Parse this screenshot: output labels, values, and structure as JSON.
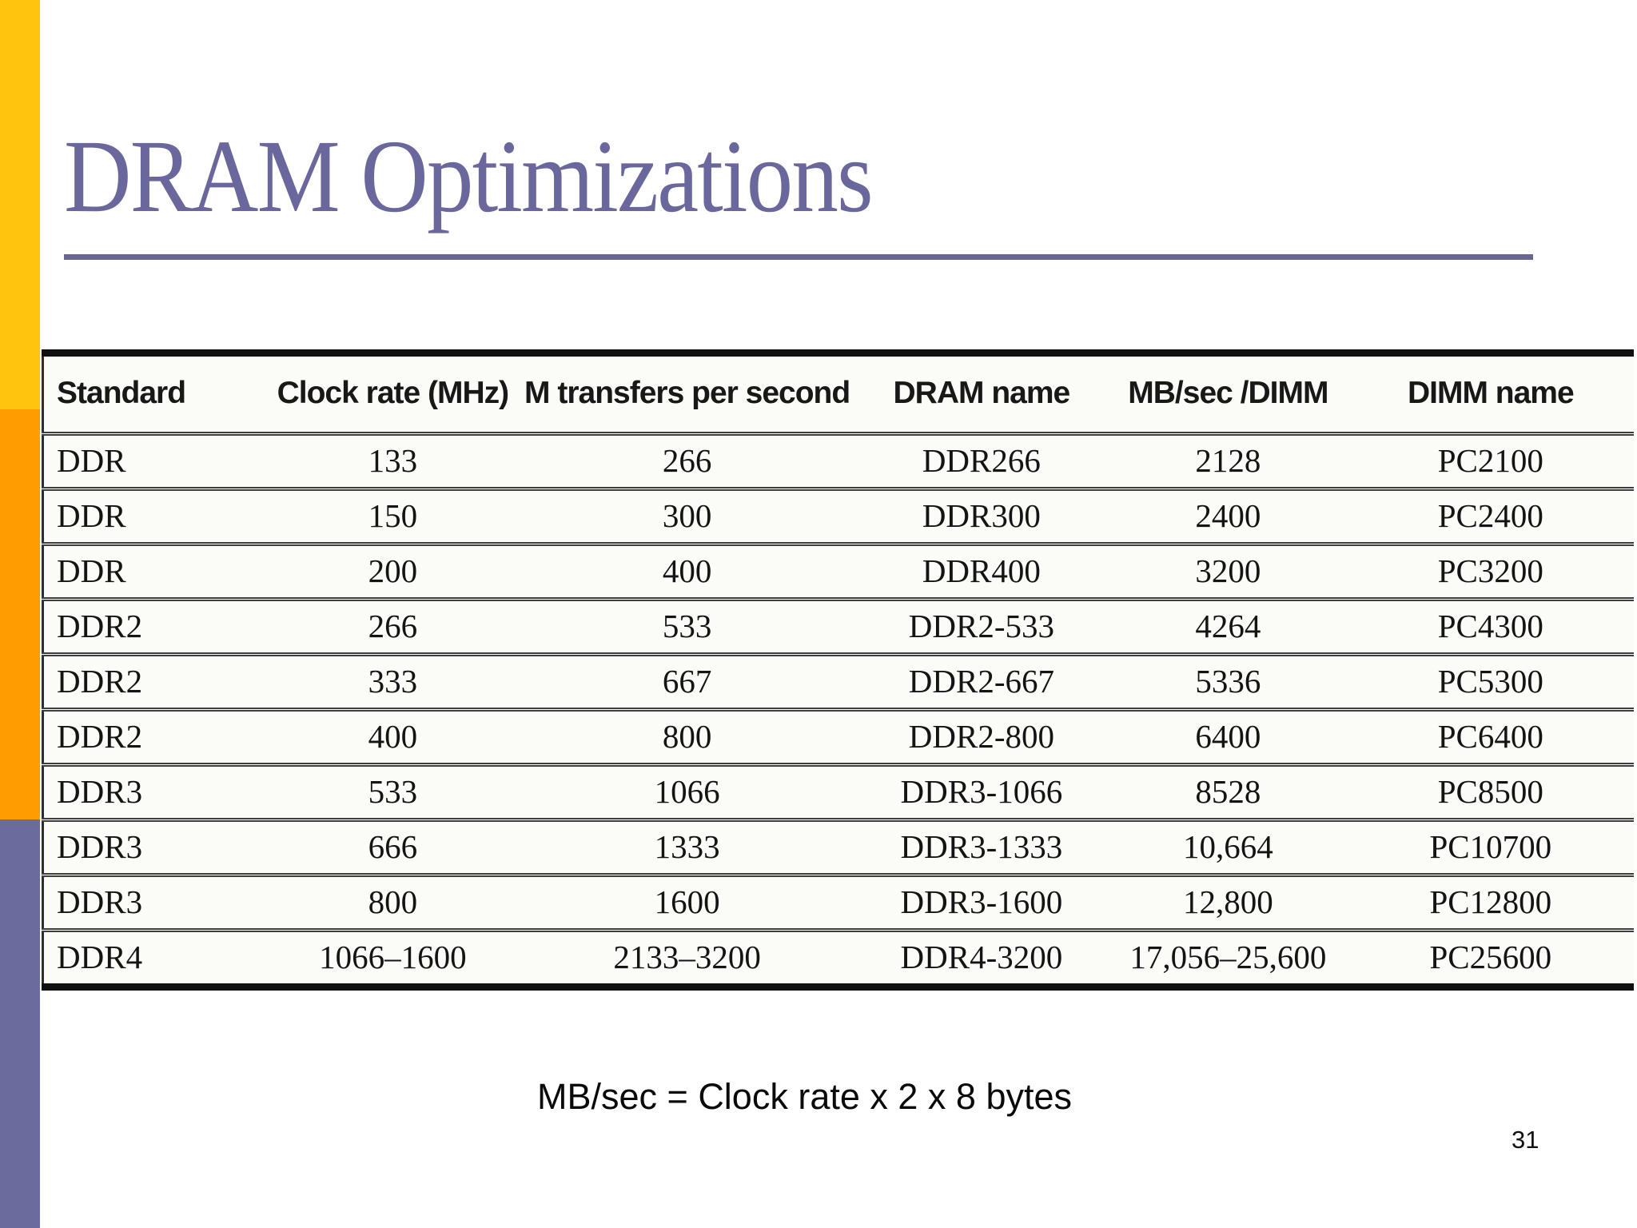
{
  "slide": {
    "title": "DRAM Optimizations",
    "formula": "MB/sec = Clock rate x 2 x 8 bytes",
    "page_number": "31"
  },
  "table": {
    "headers": [
      "Standard",
      "Clock rate (MHz)",
      "M transfers per second",
      "DRAM name",
      "MB/sec /DIMM",
      "DIMM name"
    ],
    "rows": [
      [
        "DDR",
        "133",
        "266",
        "DDR266",
        "2128",
        "PC2100"
      ],
      [
        "DDR",
        "150",
        "300",
        "DDR300",
        "2400",
        "PC2400"
      ],
      [
        "DDR",
        "200",
        "400",
        "DDR400",
        "3200",
        "PC3200"
      ],
      [
        "DDR2",
        "266",
        "533",
        "DDR2-533",
        "4264",
        "PC4300"
      ],
      [
        "DDR2",
        "333",
        "667",
        "DDR2-667",
        "5336",
        "PC5300"
      ],
      [
        "DDR2",
        "400",
        "800",
        "DDR2-800",
        "6400",
        "PC6400"
      ],
      [
        "DDR3",
        "533",
        "1066",
        "DDR3-1066",
        "8528",
        "PC8500"
      ],
      [
        "DDR3",
        "666",
        "1333",
        "DDR3-1333",
        "10,664",
        "PC10700"
      ],
      [
        "DDR3",
        "800",
        "1600",
        "DDR3-1600",
        "12,800",
        "PC12800"
      ],
      [
        "DDR4",
        "1066–1600",
        "2133–3200",
        "DDR4-3200",
        "17,056–25,600",
        "PC25600"
      ]
    ]
  },
  "colors": {
    "sidebar_gold": "#ffc40d",
    "sidebar_orange": "#ff9d00",
    "sidebar_purple": "#6b6b9d",
    "title_text": "#6a679d",
    "title_rule": "#6a6694",
    "table_border": "#101010"
  }
}
